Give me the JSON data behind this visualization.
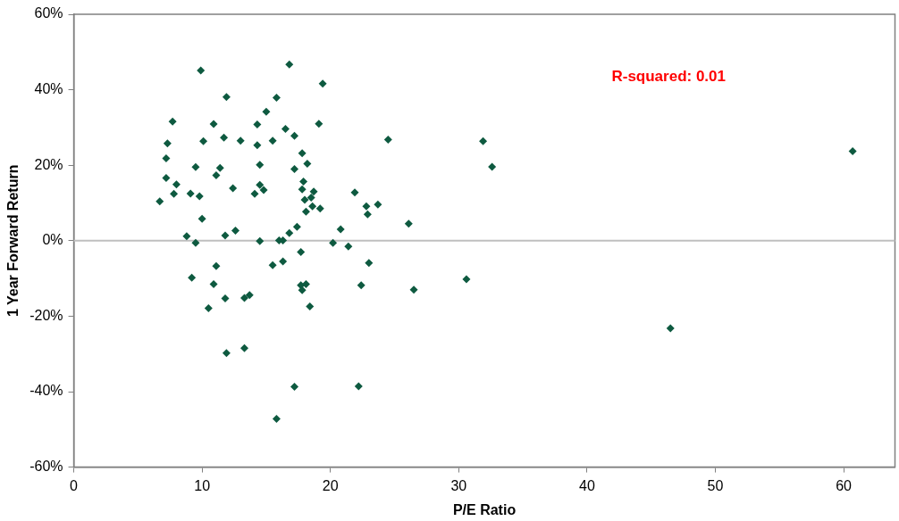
{
  "chart_data": {
    "type": "scatter",
    "xlabel": "P/E Ratio",
    "ylabel": "1 Year Forward Return",
    "annotations": [
      "R-squared: 0.01"
    ],
    "xlim": [
      0,
      64
    ],
    "xticks": [
      0,
      10,
      20,
      30,
      40,
      50,
      60
    ],
    "ylim": [
      -60,
      60
    ],
    "yticks": [
      {
        "value": -60,
        "label": "-60%"
      },
      {
        "value": -40,
        "label": "-40%"
      },
      {
        "value": -20,
        "label": "-20%"
      },
      {
        "value": 0,
        "label": "0%"
      },
      {
        "value": 20,
        "label": "20%"
      },
      {
        "value": 40,
        "label": "40%"
      },
      {
        "value": 60,
        "label": "60%"
      }
    ],
    "grid": false,
    "legend": false,
    "marker": "diamond",
    "ref_lines": [
      {
        "axis": "y",
        "value": 0,
        "color": "#bfbfbf"
      }
    ],
    "series": [
      {
        "color": "#0e5a40",
        "x": [
          9.9,
          16.8,
          19.4,
          11.9,
          15.8,
          15.0,
          7.7,
          10.9,
          14.3,
          19.1,
          16.5,
          17.2,
          7.3,
          10.1,
          11.7,
          13.0,
          14.3,
          15.5,
          17.8,
          7.2,
          9.5,
          11.4,
          11.1,
          14.5,
          18.2,
          17.2,
          7.2,
          8.0,
          7.8,
          9.1,
          9.8,
          6.7,
          12.4,
          14.5,
          14.8,
          14.1,
          17.9,
          17.8,
          18.7,
          18.0,
          18.5,
          18.1,
          18.6,
          19.2,
          21.9,
          10.0,
          12.6,
          11.8,
          8.8,
          9.5,
          14.5,
          16.0,
          16.3,
          16.8,
          17.4,
          20.8,
          20.2,
          21.4,
          17.7,
          15.5,
          16.3,
          11.1,
          9.2,
          10.9,
          11.8,
          13.3,
          13.7,
          10.5,
          17.7,
          18.1,
          17.8,
          18.4,
          22.4,
          11.9,
          13.3,
          17.2,
          22.2,
          15.8,
          24.5,
          31.9,
          32.6,
          22.8,
          23.7,
          22.9,
          26.1,
          23.0,
          26.5,
          30.6,
          60.7,
          46.5
        ],
        "values": [
          45.1,
          46.7,
          41.6,
          38.1,
          37.9,
          34.2,
          31.6,
          30.9,
          30.8,
          31.0,
          29.6,
          27.8,
          25.8,
          26.4,
          27.3,
          26.5,
          25.3,
          26.5,
          23.2,
          21.8,
          19.5,
          19.3,
          17.3,
          20.1,
          20.4,
          19.0,
          16.6,
          14.9,
          12.4,
          12.5,
          11.8,
          10.4,
          13.9,
          14.8,
          13.4,
          12.4,
          15.7,
          13.6,
          13.0,
          10.8,
          11.4,
          7.7,
          9.1,
          8.5,
          12.8,
          5.8,
          2.7,
          1.4,
          1.2,
          -0.6,
          -0.1,
          0.1,
          0.1,
          2.0,
          3.7,
          3.0,
          -0.6,
          -1.5,
          -3.0,
          -6.5,
          -5.5,
          -6.7,
          -9.8,
          -11.5,
          -15.3,
          -15.2,
          -14.4,
          -17.9,
          -11.8,
          -11.5,
          -13.1,
          -17.4,
          -11.8,
          -29.8,
          -28.5,
          -38.7,
          -38.6,
          -47.2,
          26.8,
          26.4,
          19.6,
          9.1,
          9.6,
          7.0,
          4.5,
          -5.9,
          -13.0,
          -10.2,
          23.7,
          -23.2
        ]
      }
    ]
  }
}
